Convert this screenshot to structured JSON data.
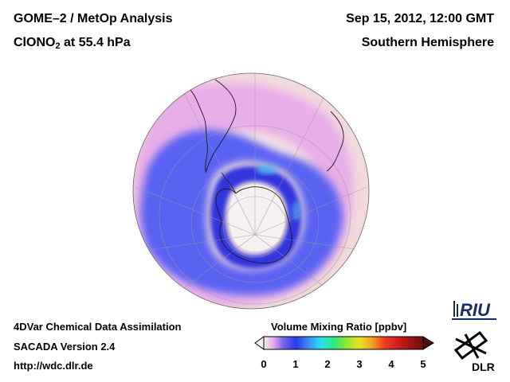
{
  "header": {
    "instrument": "GOME–2 / MetOp Analysis",
    "species_prefix": "ClONO",
    "species_sub": "2",
    "species_suffix": " at 55.4 hPa",
    "datetime": "Sep 15, 2012, 12:00 GMT",
    "region": "Southern Hemisphere"
  },
  "footer": {
    "line1": "4DVar Chemical Data Assimilation",
    "line2": "SACADA Version 2.4",
    "line3": "http://wdc.dlr.de"
  },
  "colorbar": {
    "title": "Volume Mixing Ratio [ppbv]",
    "ticks": [
      "0",
      "1",
      "2",
      "3",
      "4",
      "5"
    ],
    "range": [
      0,
      5
    ]
  },
  "logos": {
    "riu": "RIU",
    "dlr": "DLR"
  },
  "colors": {
    "background_low": "#f2dede",
    "ring_blue": "#4a52f0",
    "ring_dark": "#2a2ad8",
    "pink": "#e8a8e8",
    "vortex_core": "#f4f1f0"
  }
}
